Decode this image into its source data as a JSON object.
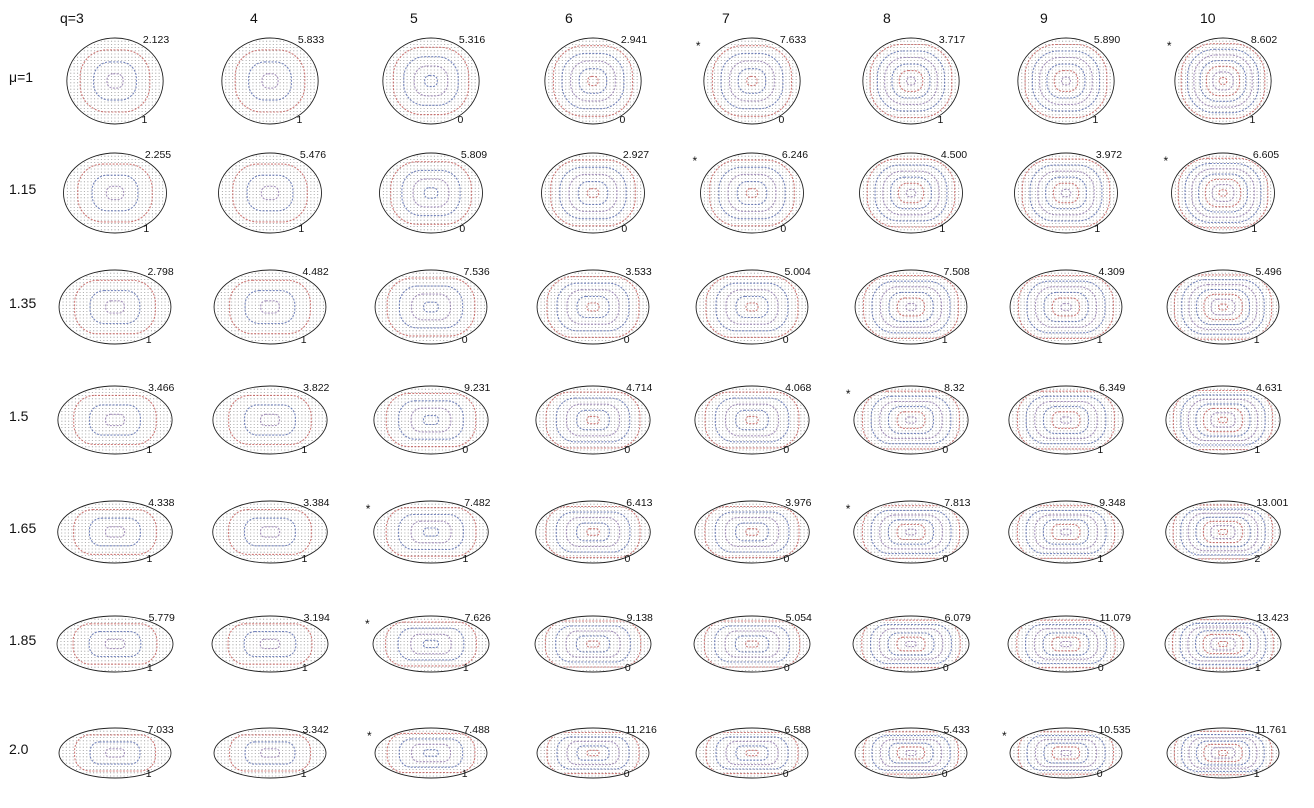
{
  "column_labels": [
    "q=3",
    "4",
    "5",
    "6",
    "7",
    "8",
    "9",
    "10"
  ],
  "row_labels": [
    "μ=1",
    "1.15",
    "1.35",
    "1.5",
    "1.65",
    "1.85",
    "2.0"
  ],
  "mu_values": [
    1,
    1.15,
    1.35,
    1.5,
    1.65,
    1.85,
    2.0
  ],
  "q_values": [
    3,
    4,
    5,
    6,
    7,
    8,
    9,
    10
  ],
  "energies": [
    [
      "2.123",
      "5.833",
      "5.316",
      "2.941",
      "7.633",
      "3.717",
      "5.890",
      "8.602"
    ],
    [
      "2.255",
      "5.476",
      "5.809",
      "2.927",
      "6.246",
      "4.500",
      "3.972",
      "6.605"
    ],
    [
      "2.798",
      "4.482",
      "7.536",
      "3.533",
      "5.004",
      "7.508",
      "4.309",
      "5.496"
    ],
    [
      "3.466",
      "3.822",
      "9.231",
      "4.714",
      "4.068",
      "8.32",
      "6.349",
      "4.631"
    ],
    [
      "4.338",
      "3.384",
      "7.482",
      "6.413",
      "3.976",
      "7.813",
      "9.348",
      "13.001"
    ],
    [
      "5.779",
      "3.194",
      "7.626",
      "9.138",
      "5.054",
      "6.079",
      "11.079",
      "13.423"
    ],
    [
      "7.033",
      "3.342",
      "7.488",
      "11.216",
      "6.588",
      "5.433",
      "10.535",
      "11.761"
    ]
  ],
  "winding_numbers": [
    [
      "1",
      "1",
      "0",
      "0",
      "0",
      "1",
      "1",
      "1"
    ],
    [
      "1",
      "1",
      "0",
      "0",
      "0",
      "1",
      "1",
      "1"
    ],
    [
      "1",
      "1",
      "0",
      "0",
      "0",
      "1",
      "1",
      "1"
    ],
    [
      "1",
      "1",
      "0",
      "0",
      "0",
      "0",
      "1",
      "1"
    ],
    [
      "1",
      "1",
      "1",
      "0",
      "0",
      "0",
      "1",
      "2"
    ],
    [
      "1",
      "1",
      "1",
      "0",
      "0",
      "0",
      "0",
      "1"
    ],
    [
      "1",
      "1",
      "1",
      "0",
      "0",
      "0",
      "0",
      "1"
    ]
  ],
  "starred": [
    [
      false,
      false,
      false,
      false,
      true,
      false,
      false,
      true
    ],
    [
      false,
      false,
      false,
      false,
      true,
      false,
      false,
      true
    ],
    [
      false,
      false,
      false,
      false,
      false,
      false,
      false,
      false
    ],
    [
      false,
      false,
      false,
      false,
      false,
      true,
      false,
      false
    ],
    [
      false,
      false,
      true,
      false,
      false,
      true,
      false,
      false
    ],
    [
      false,
      false,
      true,
      false,
      false,
      false,
      false,
      false
    ],
    [
      false,
      false,
      true,
      false,
      false,
      false,
      true,
      false
    ]
  ],
  "star_symbol": "*",
  "colors": {
    "outline": "#222222",
    "dots": "#444444",
    "stripe_red": "#c0504d",
    "stripe_blue": "#4a5fa8",
    "stripe_purple": "#8a6fa8"
  }
}
